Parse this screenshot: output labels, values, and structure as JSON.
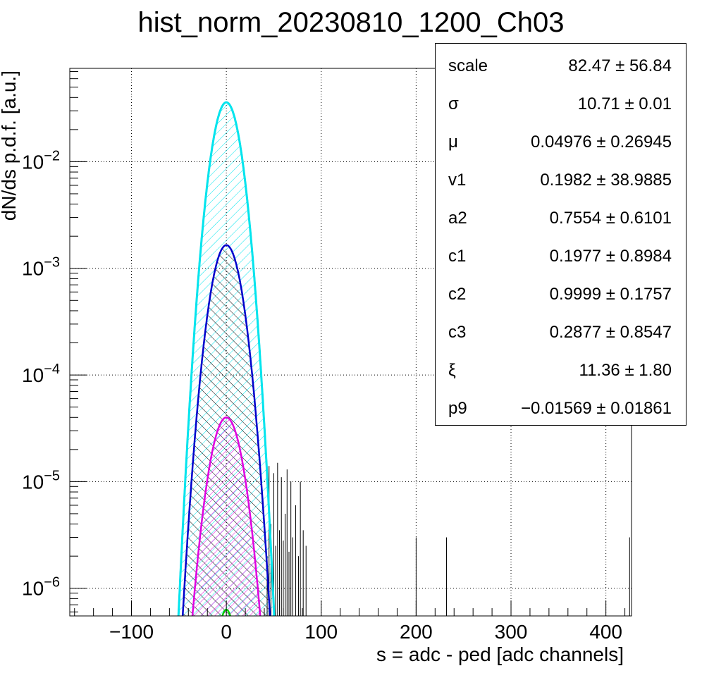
{
  "chart_data": {
    "type": "histogram",
    "title": "hist_norm_20230810_1200_Ch03",
    "xlabel": "s = adc - ped [adc channels]",
    "ylabel": "dN/ds p.d.f. [a.u.]",
    "xlim": [
      -165,
      427
    ],
    "ylim": [
      5.5e-07,
      0.075
    ],
    "yscale": "log",
    "grid": true,
    "x_ticks": [
      "−100",
      "0",
      "100",
      "200",
      "300",
      "400"
    ],
    "x_tick_values": [
      -100,
      0,
      100,
      200,
      300,
      400
    ],
    "y_ticks": [
      {
        "value": 1e-06,
        "base": "10",
        "exp": "−6"
      },
      {
        "value": 1e-05,
        "base": "10",
        "exp": "−5"
      },
      {
        "value": 0.0001,
        "base": "10",
        "exp": "−4"
      },
      {
        "value": 0.001,
        "base": "10",
        "exp": "−3"
      },
      {
        "value": 0.01,
        "base": "10",
        "exp": "−2"
      }
    ],
    "fit_components": [
      {
        "color": "#ff0000",
        "peak": 0.036,
        "mu": 0,
        "sigma": 10.71,
        "fill": "none"
      },
      {
        "color": "#00e5ee",
        "peak": 0.036,
        "mu": 0,
        "sigma": 10.71,
        "fill": "hatch-cyan"
      },
      {
        "color": "#0000cc",
        "peak": 0.00165,
        "mu": 0,
        "sigma": 11.5,
        "fill": "hatch-black"
      },
      {
        "color": "#e000e0",
        "peak": 4e-05,
        "mu": 0,
        "sigma": 12.2,
        "fill": "hatch-magenta"
      },
      {
        "color": "#00cc00",
        "peak": 6.3e-07,
        "mu": 0,
        "sigma": 8.0,
        "fill": "none"
      }
    ],
    "tail_spikes": [
      {
        "x": 43,
        "y": 2e-06
      },
      {
        "x": 45,
        "y": 1.4e-05
      },
      {
        "x": 47,
        "y": 4e-06
      },
      {
        "x": 50,
        "y": 1.2e-05
      },
      {
        "x": 52,
        "y": 2.5e-06
      },
      {
        "x": 54,
        "y": 1.5e-05
      },
      {
        "x": 56,
        "y": 3.5e-06
      },
      {
        "x": 58,
        "y": 1.1e-05
      },
      {
        "x": 60,
        "y": 2.8e-06
      },
      {
        "x": 62,
        "y": 5e-06
      },
      {
        "x": 64,
        "y": 1.3e-05
      },
      {
        "x": 66,
        "y": 2.2e-06
      },
      {
        "x": 68,
        "y": 1e-05
      },
      {
        "x": 70,
        "y": 3e-06
      },
      {
        "x": 73,
        "y": 6e-06
      },
      {
        "x": 76,
        "y": 2e-06
      },
      {
        "x": 78,
        "y": 1e-05
      },
      {
        "x": 81,
        "y": 3.5e-06
      },
      {
        "x": 84,
        "y": 2.5e-06
      },
      {
        "x": 200,
        "y": 3e-06
      },
      {
        "x": 232,
        "y": 3e-06
      },
      {
        "x": 425,
        "y": 3e-06
      }
    ]
  },
  "stats": [
    {
      "name": "scale",
      "value": "82.47  ± 56.84"
    },
    {
      "name": "σ",
      "value": "10.71 ± 0.01"
    },
    {
      "name": "μ",
      "value": "0.04976  ± 0.26945"
    },
    {
      "name": "v1",
      "value": "0.1982  ± 38.9885"
    },
    {
      "name": "a2",
      "value": "0.7554  ± 0.6101"
    },
    {
      "name": "c1",
      "value": "0.1977  ± 0.8984"
    },
    {
      "name": "c2",
      "value": "0.9999  ± 0.1757"
    },
    {
      "name": "c3",
      "value": "0.2877  ± 0.8547"
    },
    {
      "name": "ξ",
      "value": "11.36  ± 1.80"
    },
    {
      "name": "p9",
      "value": "−0.01569  ± 0.01861"
    }
  ]
}
